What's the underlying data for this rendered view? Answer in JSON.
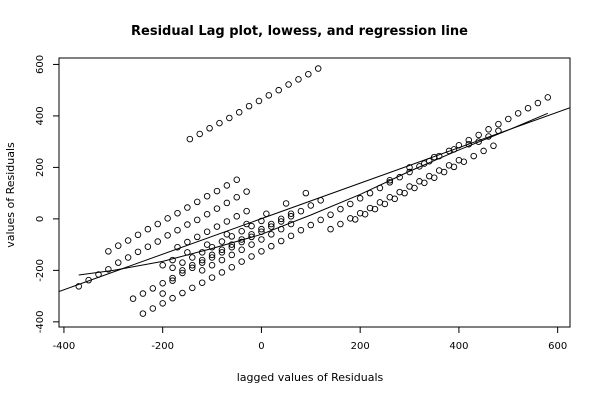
{
  "chart_data": {
    "type": "scatter",
    "title": "Residual Lag plot, lowess, and regression line",
    "xlabel": "lagged values of Residuals",
    "ylabel": "values of Residuals",
    "xlim": [
      -410,
      625
    ],
    "ylim": [
      -420,
      625
    ],
    "xticks": [
      -400,
      -200,
      0,
      200,
      400,
      600
    ],
    "yticks": [
      -400,
      -200,
      0,
      200,
      400,
      600
    ],
    "grid": false,
    "legend": "none",
    "marker": "open-circle",
    "points": [
      [
        -370,
        -262
      ],
      [
        -350,
        -238
      ],
      [
        -330,
        -216
      ],
      [
        -310,
        -196
      ],
      [
        -290,
        -170
      ],
      [
        -270,
        -150
      ],
      [
        -250,
        -128
      ],
      [
        -230,
        -108
      ],
      [
        -210,
        -88
      ],
      [
        -190,
        -64
      ],
      [
        -170,
        -44
      ],
      [
        -150,
        -22
      ],
      [
        -130,
        -4
      ],
      [
        -110,
        18
      ],
      [
        -90,
        40
      ],
      [
        -70,
        62
      ],
      [
        -50,
        84
      ],
      [
        -30,
        106
      ],
      [
        -310,
        -126
      ],
      [
        -290,
        -104
      ],
      [
        -270,
        -84
      ],
      [
        -250,
        -62
      ],
      [
        -230,
        -40
      ],
      [
        -210,
        -20
      ],
      [
        -190,
        2
      ],
      [
        -170,
        22
      ],
      [
        -150,
        44
      ],
      [
        -130,
        66
      ],
      [
        -110,
        88
      ],
      [
        -90,
        108
      ],
      [
        -70,
        130
      ],
      [
        -50,
        152
      ],
      [
        -145,
        310
      ],
      [
        -125,
        330
      ],
      [
        -105,
        352
      ],
      [
        -85,
        372
      ],
      [
        -65,
        392
      ],
      [
        -45,
        414
      ],
      [
        -25,
        438
      ],
      [
        -5,
        458
      ],
      [
        15,
        480
      ],
      [
        35,
        500
      ],
      [
        55,
        522
      ],
      [
        75,
        542
      ],
      [
        95,
        562
      ],
      [
        115,
        584
      ],
      [
        -260,
        -310
      ],
      [
        -240,
        -290
      ],
      [
        -220,
        -270
      ],
      [
        -200,
        -250
      ],
      [
        -180,
        -230
      ],
      [
        -160,
        -210
      ],
      [
        -140,
        -190
      ],
      [
        -120,
        -170
      ],
      [
        -100,
        -150
      ],
      [
        -80,
        -130
      ],
      [
        -60,
        -110
      ],
      [
        -40,
        -90
      ],
      [
        -20,
        -70
      ],
      [
        0,
        -50
      ],
      [
        20,
        -30
      ],
      [
        40,
        -10
      ],
      [
        60,
        10
      ],
      [
        80,
        30
      ],
      [
        100,
        52
      ],
      [
        120,
        72
      ],
      [
        -240,
        -368
      ],
      [
        -220,
        -348
      ],
      [
        -200,
        -328
      ],
      [
        -180,
        -308
      ],
      [
        -160,
        -288
      ],
      [
        -140,
        -268
      ],
      [
        -120,
        -248
      ],
      [
        -100,
        -228
      ],
      [
        -80,
        -208
      ],
      [
        -60,
        -188
      ],
      [
        -40,
        -166
      ],
      [
        -20,
        -146
      ],
      [
        0,
        -126
      ],
      [
        20,
        -106
      ],
      [
        40,
        -86
      ],
      [
        60,
        -66
      ],
      [
        80,
        -44
      ],
      [
        100,
        -24
      ],
      [
        120,
        -4
      ],
      [
        140,
        16
      ],
      [
        160,
        38
      ],
      [
        180,
        58
      ],
      [
        200,
        80
      ],
      [
        220,
        100
      ],
      [
        240,
        120
      ],
      [
        260,
        142
      ],
      [
        280,
        162
      ],
      [
        300,
        182
      ],
      [
        320,
        204
      ],
      [
        340,
        224
      ],
      [
        360,
        244
      ],
      [
        380,
        264
      ],
      [
        400,
        286
      ],
      [
        420,
        306
      ],
      [
        440,
        326
      ],
      [
        460,
        348
      ],
      [
        480,
        368
      ],
      [
        500,
        388
      ],
      [
        520,
        410
      ],
      [
        540,
        430
      ],
      [
        560,
        450
      ],
      [
        580,
        472
      ],
      [
        -200,
        -290
      ],
      [
        -180,
        -240
      ],
      [
        -160,
        -200
      ],
      [
        -140,
        -180
      ],
      [
        -120,
        -160
      ],
      [
        -100,
        -140
      ],
      [
        -80,
        -120
      ],
      [
        -60,
        -100
      ],
      [
        -40,
        -80
      ],
      [
        -20,
        -60
      ],
      [
        0,
        -40
      ],
      [
        20,
        -20
      ],
      [
        40,
        0
      ],
      [
        60,
        20
      ],
      [
        -180,
        -190
      ],
      [
        -160,
        -170
      ],
      [
        -140,
        -150
      ],
      [
        -120,
        -130
      ],
      [
        -100,
        -110
      ],
      [
        -80,
        -88
      ],
      [
        -60,
        -68
      ],
      [
        -40,
        -48
      ],
      [
        -20,
        -28
      ],
      [
        0,
        -8
      ],
      [
        -170,
        -110
      ],
      [
        -150,
        -90
      ],
      [
        -130,
        -70
      ],
      [
        -110,
        -50
      ],
      [
        -90,
        -30
      ],
      [
        -70,
        -10
      ],
      [
        -50,
        10
      ],
      [
        -30,
        30
      ],
      [
        -120,
        -200
      ],
      [
        -100,
        -180
      ],
      [
        -80,
        -160
      ],
      [
        -60,
        -140
      ],
      [
        -40,
        -120
      ],
      [
        -20,
        -100
      ],
      [
        0,
        -80
      ],
      [
        20,
        -60
      ],
      [
        40,
        -40
      ],
      [
        60,
        -20
      ],
      [
        190,
        -2
      ],
      [
        210,
        18
      ],
      [
        230,
        38
      ],
      [
        250,
        58
      ],
      [
        270,
        78
      ],
      [
        290,
        100
      ],
      [
        310,
        120
      ],
      [
        330,
        140
      ],
      [
        350,
        160
      ],
      [
        370,
        182
      ],
      [
        390,
        202
      ],
      [
        410,
        222
      ],
      [
        430,
        244
      ],
      [
        450,
        264
      ],
      [
        470,
        284
      ],
      [
        140,
        -40
      ],
      [
        160,
        -20
      ],
      [
        180,
        2
      ],
      [
        200,
        22
      ],
      [
        220,
        42
      ],
      [
        240,
        64
      ],
      [
        260,
        84
      ],
      [
        280,
        104
      ],
      [
        300,
        126
      ],
      [
        320,
        146
      ],
      [
        340,
        166
      ],
      [
        360,
        188
      ],
      [
        380,
        208
      ],
      [
        400,
        228
      ],
      [
        -200,
        -180
      ],
      [
        -180,
        -160
      ],
      [
        -150,
        -130
      ],
      [
        -110,
        -100
      ],
      [
        -70,
        -60
      ],
      [
        -30,
        -20
      ],
      [
        10,
        20
      ],
      [
        50,
        60
      ],
      [
        90,
        100
      ],
      [
        260,
        150
      ],
      [
        300,
        200
      ],
      [
        330,
        215
      ],
      [
        350,
        240
      ],
      [
        390,
        270
      ],
      [
        420,
        290
      ],
      [
        440,
        300
      ],
      [
        460,
        320
      ],
      [
        480,
        342
      ]
    ],
    "regression_line": {
      "x": [
        -410,
        625
      ],
      "y": [
        -282,
        432
      ]
    },
    "lowess": {
      "x": [
        -370,
        -300,
        -200,
        -100,
        0,
        100,
        200,
        300,
        400,
        500,
        580
      ],
      "y": [
        -218,
        -200,
        -165,
        -115,
        -60,
        15,
        95,
        185,
        268,
        345,
        410
      ]
    }
  }
}
